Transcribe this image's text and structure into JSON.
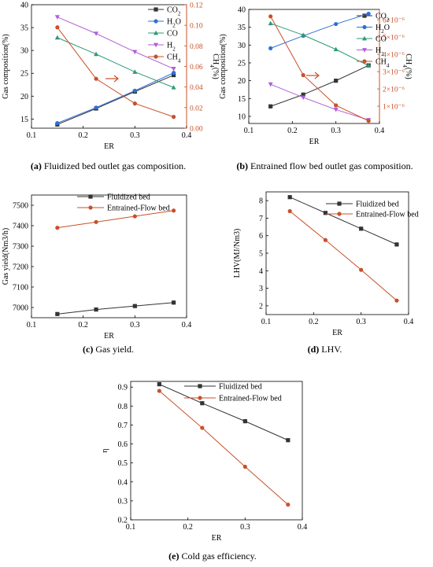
{
  "charts": [
    {
      "id": "a",
      "caption": {
        "tag": "(a)",
        "text": " Fluidized bed outlet gas composition."
      },
      "chart_data": {
        "type": "line",
        "xlabel": "ER",
        "ylabel": "Gas composition(%)",
        "y2label": "CH4(%)",
        "xlim": [
          0.1,
          0.4
        ],
        "ylim": [
          13,
          40
        ],
        "y2lim": [
          0,
          0.12
        ],
        "xticks": [
          "0.1",
          "0.2",
          "0.3",
          "0.4"
        ],
        "yticks": [
          "15",
          "20",
          "25",
          "30",
          "35",
          "40"
        ],
        "y2ticks": [
          "0.00",
          "0.02",
          "0.04",
          "0.06",
          "0.08",
          "0.10",
          "0.12"
        ],
        "x": [
          0.15,
          0.225,
          0.3,
          0.375
        ],
        "series": [
          {
            "name": "CO2",
            "axis": "left",
            "color": "#333333",
            "marker": "square",
            "values": [
              13.8,
              17.3,
              21.0,
              24.6
            ]
          },
          {
            "name": "H2O",
            "axis": "left",
            "color": "#2f6fd6",
            "marker": "circle",
            "values": [
              14.1,
              17.5,
              21.2,
              25.1
            ]
          },
          {
            "name": "CO",
            "axis": "left",
            "color": "#2e9a76",
            "marker": "triangle-up",
            "values": [
              32.8,
              29.2,
              25.3,
              21.9
            ]
          },
          {
            "name": "H2",
            "axis": "left",
            "color": "#b15fd6",
            "marker": "triangle-down",
            "values": [
              37.3,
              33.7,
              29.7,
              26.0
            ]
          },
          {
            "name": "CH4",
            "axis": "right",
            "color": "#c8502a",
            "marker": "circle",
            "values": [
              0.098,
              0.048,
              0.024,
              0.011
            ]
          }
        ],
        "legend_position": "top-right",
        "annotation": "arrow pointing right"
      }
    },
    {
      "id": "b",
      "caption": {
        "tag": "(b)",
        "text": " Entrained flow bed outlet gas composition."
      },
      "chart_data": {
        "type": "line",
        "xlabel": "ER",
        "ylabel": "Gas composition(%)",
        "y2label": "CH4(%)",
        "xlim": [
          0.1,
          0.4
        ],
        "ylim": [
          8,
          40
        ],
        "y2lim": [
          0,
          6.6e-06
        ],
        "xticks": [
          "0.1",
          "0.2",
          "0.3",
          "0.4"
        ],
        "yticks": [
          "10",
          "15",
          "20",
          "25",
          "30",
          "35",
          "40"
        ],
        "y2ticks": [
          "1×10⁻⁶",
          "2×10⁻⁶",
          "3×10⁻⁶",
          "4×10⁻⁶",
          "5×10⁻⁶",
          "6×10⁻⁶"
        ],
        "x": [
          0.15,
          0.225,
          0.3,
          0.375
        ],
        "series": [
          {
            "name": "CO2",
            "axis": "left",
            "color": "#333333",
            "marker": "square",
            "values": [
              12.8,
              16.1,
              20.0,
              24.3
            ]
          },
          {
            "name": "H2O",
            "axis": "left",
            "color": "#2f6fd6",
            "marker": "circle",
            "values": [
              29.1,
              32.6,
              35.9,
              38.8
            ]
          },
          {
            "name": "CO",
            "axis": "left",
            "color": "#2e9a76",
            "marker": "triangle-up",
            "values": [
              36.1,
              32.8,
              28.8,
              24.2
            ]
          },
          {
            "name": "H2",
            "axis": "left",
            "color": "#b15fd6",
            "marker": "triangle-down",
            "values": [
              19.0,
              15.3,
              11.9,
              9.0
            ]
          },
          {
            "name": "CH4",
            "axis": "right",
            "color": "#c8502a",
            "marker": "circle",
            "values": [
              6.2e-06,
              2.8e-06,
              1.05e-06,
              1.5e-07
            ]
          }
        ],
        "legend_position": "top-right",
        "annotation": "arrow pointing right"
      }
    },
    {
      "id": "c",
      "caption": {
        "tag": "(c)",
        "text": " Gas yield."
      },
      "chart_data": {
        "type": "line",
        "xlabel": "ER",
        "ylabel": "Gas yield(Nm3/h)",
        "xlim": [
          0.1,
          0.4
        ],
        "ylim": [
          6950,
          7550
        ],
        "xticks": [
          "0.1",
          "0.2",
          "0.3",
          "0.4"
        ],
        "yticks": [
          "7000",
          "7100",
          "7200",
          "7300",
          "7400",
          "7500"
        ],
        "x": [
          0.15,
          0.225,
          0.3,
          0.375
        ],
        "series": [
          {
            "name": "Fluidized bed",
            "color": "#333333",
            "marker": "square",
            "values": [
              6968,
              6990,
              7007,
              7024
            ]
          },
          {
            "name": "Entrained-Flow bed",
            "color": "#c8502a",
            "marker": "circle",
            "values": [
              7390,
              7418,
              7446,
              7474
            ]
          }
        ],
        "legend_position": "top-left"
      }
    },
    {
      "id": "d",
      "caption": {
        "tag": "(d)",
        "text": " LHV."
      },
      "chart_data": {
        "type": "line",
        "xlabel": "ER",
        "ylabel": "LHV(MJ/Nm3)",
        "xlim": [
          0.1,
          0.4
        ],
        "ylim": [
          1.5,
          8.5
        ],
        "xticks": [
          "0.1",
          "0.2",
          "0.3",
          "0.4"
        ],
        "yticks": [
          "2",
          "3",
          "4",
          "5",
          "6",
          "7",
          "8"
        ],
        "x": [
          0.15,
          0.225,
          0.3,
          0.375
        ],
        "series": [
          {
            "name": "Fluidized bed",
            "color": "#333333",
            "marker": "square",
            "values": [
              8.2,
              7.3,
              6.4,
              5.5
            ]
          },
          {
            "name": "Entrained-Flow bed",
            "color": "#c8502a",
            "marker": "circle",
            "values": [
              7.4,
              5.75,
              4.05,
              2.3
            ]
          }
        ],
        "legend_position": "top-right"
      }
    },
    {
      "id": "e",
      "caption": {
        "tag": "(e)",
        "text": " Cold gas efficiency."
      },
      "chart_data": {
        "type": "line",
        "xlabel": "ER",
        "ylabel": "η",
        "xlim": [
          0.1,
          0.4
        ],
        "ylim": [
          0.2,
          0.93
        ],
        "xticks": [
          "0.1",
          "0.2",
          "0.3",
          "0.4"
        ],
        "yticks": [
          "0.2",
          "0.3",
          "0.4",
          "0.5",
          "0.6",
          "0.7",
          "0.8",
          "0.9"
        ],
        "x": [
          0.15,
          0.225,
          0.3,
          0.375
        ],
        "series": [
          {
            "name": "Fluidized bed",
            "color": "#333333",
            "marker": "square",
            "values": [
              0.915,
              0.815,
              0.72,
              0.62
            ]
          },
          {
            "name": "Entrained-Flow bed",
            "color": "#c8502a",
            "marker": "circle",
            "values": [
              0.88,
              0.685,
              0.48,
              0.28
            ]
          }
        ],
        "legend_position": "top-right"
      }
    }
  ]
}
